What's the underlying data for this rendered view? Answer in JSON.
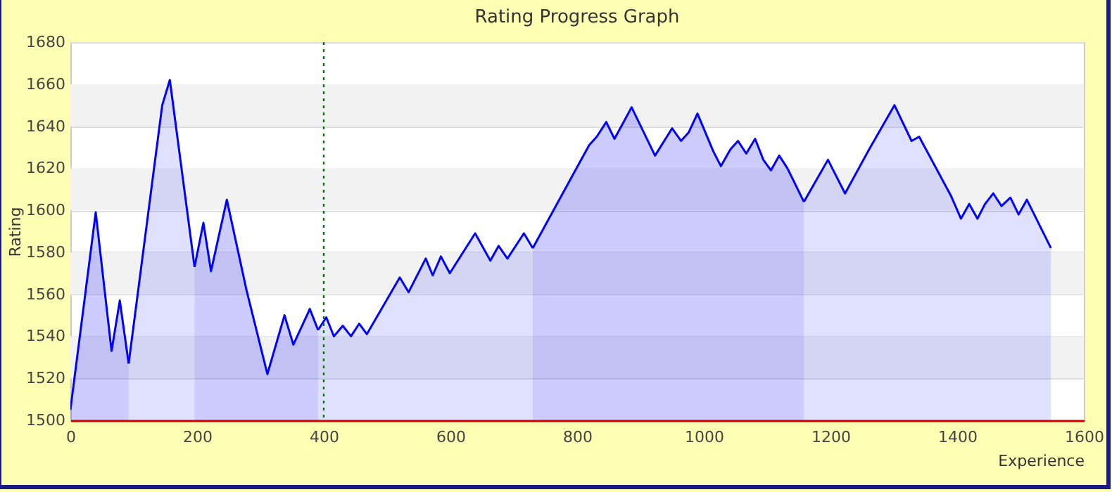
{
  "chart_data": {
    "type": "area",
    "title": "Rating Progress Graph",
    "xlabel": "Experience",
    "ylabel": "Rating",
    "xlim": [
      0,
      1600
    ],
    "xticks": [
      0,
      200,
      400,
      600,
      800,
      1000,
      1200,
      1400,
      1600
    ],
    "ylim": [
      1500,
      1680
    ],
    "yticks": [
      1500,
      1520,
      1540,
      1560,
      1580,
      1600,
      1620,
      1640,
      1660,
      1680
    ],
    "grid": "y",
    "series": [
      {
        "color": "#0000ff",
        "x": [
          0,
          40,
          65,
          78,
          92
        ],
        "values": [
          1505,
          1599,
          1533,
          1557,
          1527
        ]
      },
      {
        "color": "#0000ff",
        "x": [
          92,
          145,
          157,
          196
        ],
        "values": [
          1527,
          1650,
          1662,
          1573
        ]
      },
      {
        "color": "#0000ff",
        "x": [
          196,
          210,
          222,
          247,
          278,
          311,
          338,
          352,
          378,
          391
        ],
        "values": [
          1573,
          1594,
          1571,
          1605,
          1562,
          1522,
          1550,
          1536,
          1553,
          1543
        ]
      },
      {
        "color": "#0000ff",
        "x": [
          391,
          404,
          416,
          430,
          443,
          456,
          468,
          520,
          534,
          561,
          572,
          585,
          599,
          639,
          663,
          676,
          690,
          716,
          730
        ],
        "values": [
          1543,
          1549,
          1540,
          1545,
          1540,
          1546,
          1541,
          1568,
          1561,
          1577,
          1569,
          1578,
          1570,
          1589,
          1576,
          1583,
          1577,
          1589,
          1582
        ]
      },
      {
        "color": "#0000ff",
        "x": [
          730,
          819,
          831,
          846,
          859,
          886,
          923,
          950,
          964,
          976,
          990,
          1015,
          1027,
          1042,
          1054,
          1067,
          1081,
          1094,
          1106,
          1119,
          1132,
          1158
        ],
        "values": [
          1582,
          1631,
          1635,
          1642,
          1634,
          1649,
          1626,
          1639,
          1633,
          1637,
          1646,
          1628,
          1621,
          1629,
          1633,
          1627,
          1634,
          1624,
          1619,
          1626,
          1620,
          1604
        ]
      },
      {
        "color": "#0000ff",
        "x": [
          1158,
          1196,
          1223,
          1261,
          1301,
          1328,
          1340,
          1390,
          1406,
          1419,
          1432,
          1444,
          1457,
          1470,
          1484,
          1497,
          1510,
          1548
        ],
        "values": [
          1604,
          1624,
          1608,
          1629,
          1650,
          1633,
          1635,
          1607,
          1596,
          1603,
          1596,
          1603,
          1608,
          1602,
          1606,
          1598,
          1605,
          1582
        ]
      }
    ],
    "ref_lines": [
      {
        "axis": "x",
        "value": 400,
        "color": "#007700",
        "line_style": "dotted"
      }
    ]
  }
}
